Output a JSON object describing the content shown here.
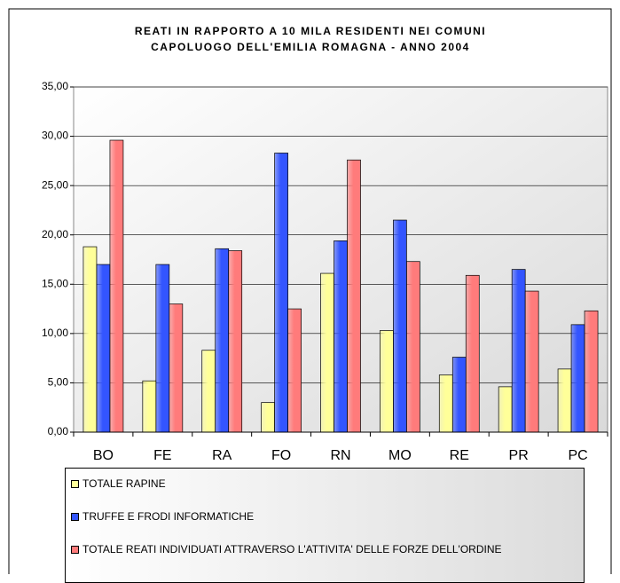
{
  "chart_data": {
    "type": "bar",
    "title": [
      "REATI IN RAPPORTO A 10 MILA RESIDENTI NEI COMUNI",
      "CAPOLUOGO DELL'EMILIA ROMAGNA - ANNO 2004"
    ],
    "categories": [
      "BO",
      "FE",
      "RA",
      "FO",
      "RN",
      "MO",
      "RE",
      "PR",
      "PC"
    ],
    "series": [
      {
        "name": "TOTALE RAPINE",
        "color": "#ffff99",
        "values": [
          18.8,
          5.2,
          8.3,
          3.0,
          16.1,
          10.3,
          5.8,
          4.6,
          6.4
        ]
      },
      {
        "name": "TRUFFE E FRODI INFORMATICHE",
        "color": "#3355ff",
        "values": [
          17.0,
          17.0,
          18.6,
          28.3,
          19.4,
          21.5,
          7.6,
          16.5,
          10.9
        ]
      },
      {
        "name": "TOTALE REATI INDIVIDUATI ATTRAVERSO L'ATTIVITA' DELLE FORZE DELL'ORDINE",
        "color": "#ff7b7b",
        "values": [
          29.6,
          13.0,
          18.4,
          12.5,
          27.6,
          17.3,
          15.9,
          14.3,
          12.3
        ]
      }
    ],
    "ylim": [
      0,
      35
    ],
    "yticks": [
      {
        "value": 0,
        "label": "0,00"
      },
      {
        "value": 5,
        "label": "5,00"
      },
      {
        "value": 10,
        "label": "10,00"
      },
      {
        "value": 15,
        "label": "15,00"
      },
      {
        "value": 20,
        "label": "20,00"
      },
      {
        "value": 25,
        "label": "25,00"
      },
      {
        "value": 30,
        "label": "30,00"
      },
      {
        "value": 35,
        "label": "35,00"
      }
    ],
    "grid": true
  }
}
